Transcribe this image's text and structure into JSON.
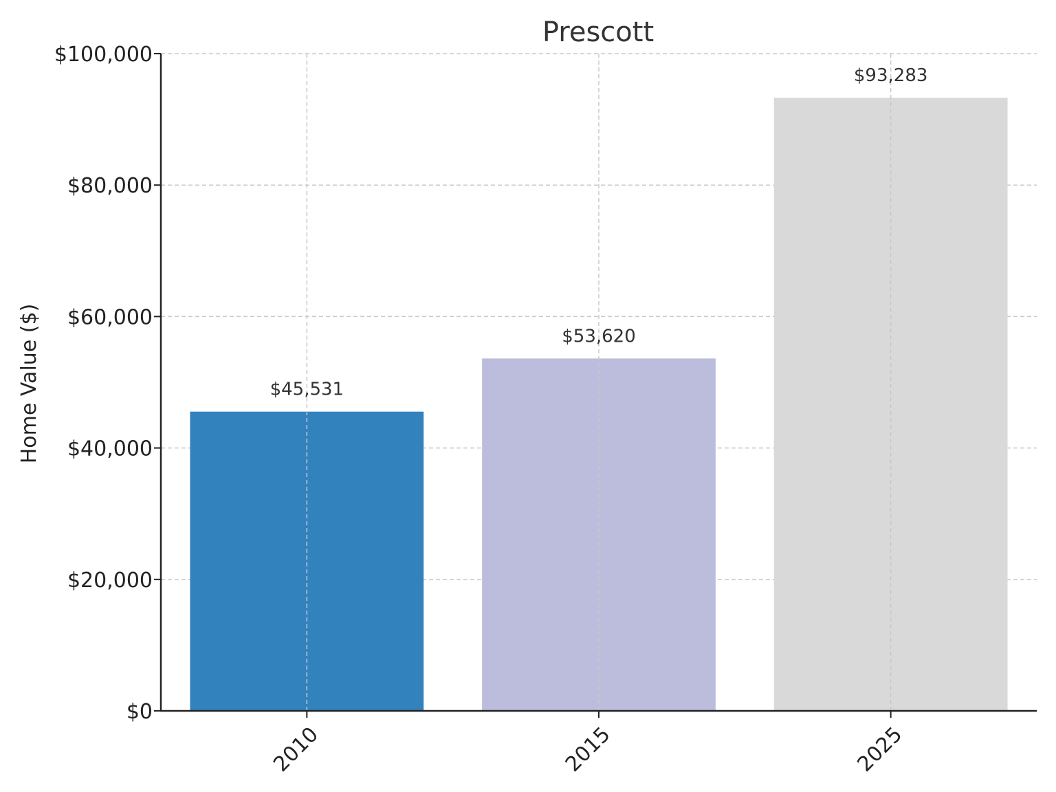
{
  "chart_data": {
    "type": "bar",
    "title": "Prescott",
    "xlabel": "",
    "ylabel": "Home Value ($)",
    "categories": [
      "2010",
      "2015",
      "2025"
    ],
    "values": [
      45531,
      53620,
      93283
    ],
    "value_labels": [
      "$45,531",
      "$53,620",
      "$93,283"
    ],
    "bar_colors": [
      "#3282bd",
      "#bcbddc",
      "#d9d9d9"
    ],
    "ylim": [
      0,
      100000
    ],
    "y_ticks": [
      0,
      20000,
      40000,
      60000,
      80000,
      100000
    ],
    "y_tick_labels": [
      "$0",
      "$20,000",
      "$40,000",
      "$60,000",
      "$80,000",
      "$100,000"
    ],
    "x_tick_rotation_deg": 45,
    "grid": true,
    "grid_style": "dashed",
    "legend": "none"
  }
}
